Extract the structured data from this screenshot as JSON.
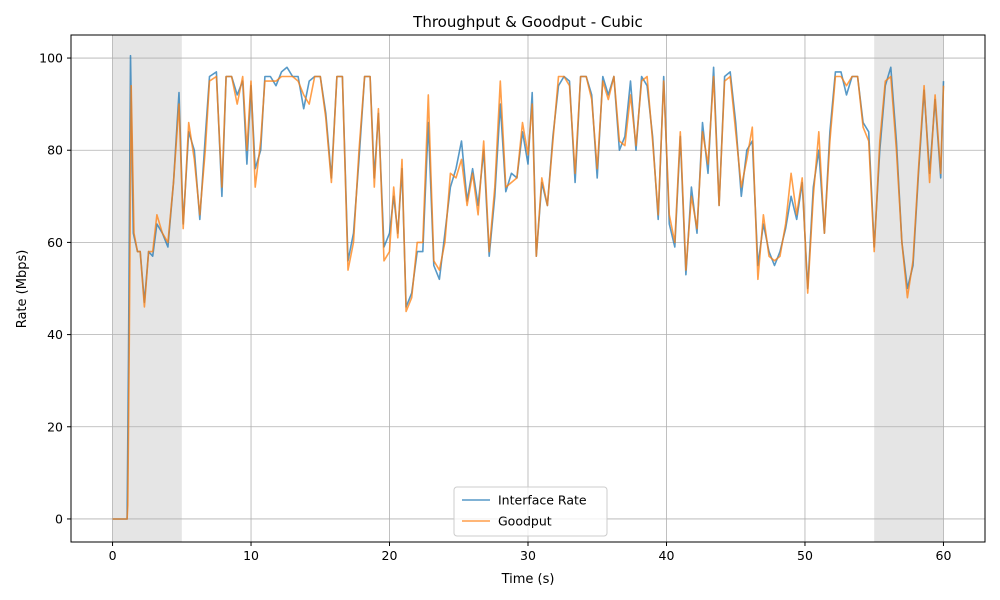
{
  "chart_data": {
    "type": "line",
    "title": "Throughput & Goodput - Cubic",
    "xlabel": "Time (s)",
    "ylabel": "Rate (Mbps)",
    "xlim": [
      -3,
      63
    ],
    "ylim": [
      -5,
      105
    ],
    "xticks": [
      0,
      10,
      20,
      30,
      40,
      50,
      60
    ],
    "yticks": [
      0,
      20,
      40,
      60,
      80,
      100
    ],
    "grid": true,
    "legend_position": "bottom-center",
    "shaded_regions": [
      {
        "x_start": 0,
        "x_end": 5,
        "color": "#e5e5e5"
      },
      {
        "x_start": 55,
        "x_end": 60,
        "color": "#e5e5e5"
      }
    ],
    "series": [
      {
        "name": "Interface Rate",
        "color": "#1f77b4",
        "points": [
          [
            0,
            0
          ],
          [
            1.05,
            0
          ],
          [
            1.15,
            35
          ],
          [
            1.3,
            100.5
          ],
          [
            1.5,
            62
          ],
          [
            1.8,
            58
          ],
          [
            2,
            58
          ],
          [
            2.3,
            47
          ],
          [
            2.6,
            58
          ],
          [
            2.9,
            57
          ],
          [
            3.2,
            64
          ],
          [
            3.6,
            62
          ],
          [
            4,
            59
          ],
          [
            4.4,
            73
          ],
          [
            4.8,
            92.5
          ],
          [
            5.1,
            64
          ],
          [
            5.5,
            84
          ],
          [
            5.9,
            80
          ],
          [
            6.3,
            65
          ],
          [
            6.7,
            83
          ],
          [
            7,
            96
          ],
          [
            7.5,
            97
          ],
          [
            7.9,
            70
          ],
          [
            8.2,
            96
          ],
          [
            8.6,
            96
          ],
          [
            9,
            92
          ],
          [
            9.4,
            95
          ],
          [
            9.7,
            77
          ],
          [
            10,
            94
          ],
          [
            10.3,
            76
          ],
          [
            10.7,
            80
          ],
          [
            11,
            96
          ],
          [
            11.4,
            96
          ],
          [
            11.8,
            94
          ],
          [
            12.2,
            97
          ],
          [
            12.6,
            98
          ],
          [
            13,
            96
          ],
          [
            13.4,
            96
          ],
          [
            13.8,
            89
          ],
          [
            14.2,
            95
          ],
          [
            14.6,
            96
          ],
          [
            15,
            96
          ],
          [
            15.4,
            88
          ],
          [
            15.8,
            74
          ],
          [
            16.2,
            96
          ],
          [
            16.6,
            96
          ],
          [
            17,
            56
          ],
          [
            17.4,
            62
          ],
          [
            17.8,
            78
          ],
          [
            18.2,
            96
          ],
          [
            18.6,
            96
          ],
          [
            18.9,
            74
          ],
          [
            19.2,
            88
          ],
          [
            19.6,
            59
          ],
          [
            20,
            62
          ],
          [
            20.3,
            70
          ],
          [
            20.6,
            62
          ],
          [
            20.9,
            76
          ],
          [
            21.2,
            46
          ],
          [
            21.6,
            49
          ],
          [
            22,
            58
          ],
          [
            22.4,
            58
          ],
          [
            22.8,
            86
          ],
          [
            23.2,
            55
          ],
          [
            23.6,
            52
          ],
          [
            24,
            62
          ],
          [
            24.4,
            72
          ],
          [
            24.8,
            76
          ],
          [
            25.2,
            82
          ],
          [
            25.6,
            69
          ],
          [
            26,
            76
          ],
          [
            26.4,
            68
          ],
          [
            26.8,
            80
          ],
          [
            27.2,
            57
          ],
          [
            27.6,
            70
          ],
          [
            28,
            90
          ],
          [
            28.4,
            71
          ],
          [
            28.8,
            75
          ],
          [
            29.2,
            74
          ],
          [
            29.6,
            84
          ],
          [
            30,
            77
          ],
          [
            30.3,
            92.5
          ],
          [
            30.6,
            57
          ],
          [
            31,
            73
          ],
          [
            31.4,
            68
          ],
          [
            31.8,
            83
          ],
          [
            32.2,
            94
          ],
          [
            32.6,
            96
          ],
          [
            33,
            95
          ],
          [
            33.4,
            73
          ],
          [
            33.8,
            96
          ],
          [
            34.2,
            96
          ],
          [
            34.6,
            92
          ],
          [
            35,
            74
          ],
          [
            35.4,
            96
          ],
          [
            35.8,
            92
          ],
          [
            36.2,
            96
          ],
          [
            36.6,
            80
          ],
          [
            37,
            83
          ],
          [
            37.4,
            95
          ],
          [
            37.8,
            80
          ],
          [
            38.2,
            96
          ],
          [
            38.6,
            94
          ],
          [
            39,
            83
          ],
          [
            39.4,
            65
          ],
          [
            39.8,
            96
          ],
          [
            40.2,
            64
          ],
          [
            40.6,
            59
          ],
          [
            41,
            83
          ],
          [
            41.4,
            53
          ],
          [
            41.8,
            72
          ],
          [
            42.2,
            62
          ],
          [
            42.6,
            86
          ],
          [
            43,
            75
          ],
          [
            43.4,
            98
          ],
          [
            43.8,
            68
          ],
          [
            44.2,
            96
          ],
          [
            44.6,
            97
          ],
          [
            45,
            86
          ],
          [
            45.4,
            70
          ],
          [
            45.8,
            80
          ],
          [
            46.2,
            82
          ],
          [
            46.6,
            55
          ],
          [
            47,
            64
          ],
          [
            47.4,
            58
          ],
          [
            47.8,
            55
          ],
          [
            48.2,
            58
          ],
          [
            48.6,
            63
          ],
          [
            49,
            70
          ],
          [
            49.4,
            65
          ],
          [
            49.8,
            73
          ],
          [
            50.2,
            50
          ],
          [
            50.6,
            72
          ],
          [
            51,
            80
          ],
          [
            51.4,
            62
          ],
          [
            51.8,
            84
          ],
          [
            52.2,
            97
          ],
          [
            52.6,
            97
          ],
          [
            53,
            92
          ],
          [
            53.4,
            96
          ],
          [
            53.8,
            96
          ],
          [
            54.2,
            86
          ],
          [
            54.6,
            84
          ],
          [
            55,
            59
          ],
          [
            55.4,
            80
          ],
          [
            55.8,
            94
          ],
          [
            56.2,
            98
          ],
          [
            56.6,
            82
          ],
          [
            57,
            60
          ],
          [
            57.4,
            50
          ],
          [
            57.8,
            55
          ],
          [
            58.2,
            75
          ],
          [
            58.6,
            93
          ],
          [
            59,
            75
          ],
          [
            59.4,
            91
          ],
          [
            59.8,
            74
          ],
          [
            60,
            95
          ]
        ]
      },
      {
        "name": "Goodput",
        "color": "#ff7f0e",
        "points": [
          [
            0,
            0
          ],
          [
            1.05,
            0
          ],
          [
            1.1,
            3
          ],
          [
            1.2,
            36
          ],
          [
            1.35,
            94
          ],
          [
            1.55,
            62
          ],
          [
            1.8,
            58
          ],
          [
            2,
            58
          ],
          [
            2.3,
            46
          ],
          [
            2.6,
            58
          ],
          [
            2.9,
            58
          ],
          [
            3.2,
            66
          ],
          [
            3.6,
            62
          ],
          [
            4,
            60
          ],
          [
            4.4,
            73
          ],
          [
            4.8,
            90
          ],
          [
            5.1,
            63
          ],
          [
            5.5,
            86
          ],
          [
            5.9,
            78
          ],
          [
            6.3,
            66
          ],
          [
            6.7,
            80
          ],
          [
            7,
            95
          ],
          [
            7.5,
            96
          ],
          [
            7.9,
            72
          ],
          [
            8.2,
            96
          ],
          [
            8.6,
            96
          ],
          [
            9,
            90
          ],
          [
            9.4,
            96
          ],
          [
            9.7,
            80
          ],
          [
            10,
            95
          ],
          [
            10.3,
            72
          ],
          [
            10.7,
            82
          ],
          [
            11,
            95
          ],
          [
            11.4,
            95
          ],
          [
            11.8,
            95
          ],
          [
            12.2,
            96
          ],
          [
            12.6,
            96
          ],
          [
            13,
            96
          ],
          [
            13.4,
            95
          ],
          [
            13.8,
            92
          ],
          [
            14.2,
            90
          ],
          [
            14.6,
            96
          ],
          [
            15,
            96
          ],
          [
            15.4,
            87
          ],
          [
            15.8,
            73
          ],
          [
            16.2,
            96
          ],
          [
            16.6,
            96
          ],
          [
            17,
            54
          ],
          [
            17.4,
            60
          ],
          [
            17.8,
            80
          ],
          [
            18.2,
            96
          ],
          [
            18.6,
            96
          ],
          [
            18.9,
            72
          ],
          [
            19.2,
            89
          ],
          [
            19.6,
            56
          ],
          [
            20,
            58
          ],
          [
            20.3,
            72
          ],
          [
            20.6,
            61
          ],
          [
            20.9,
            78
          ],
          [
            21.2,
            45
          ],
          [
            21.6,
            48
          ],
          [
            22,
            60
          ],
          [
            22.4,
            60
          ],
          [
            22.8,
            92
          ],
          [
            23.2,
            56
          ],
          [
            23.6,
            54
          ],
          [
            24,
            60
          ],
          [
            24.4,
            75
          ],
          [
            24.8,
            74
          ],
          [
            25.2,
            78
          ],
          [
            25.6,
            68
          ],
          [
            26,
            75
          ],
          [
            26.4,
            66
          ],
          [
            26.8,
            82
          ],
          [
            27.2,
            58
          ],
          [
            27.6,
            72
          ],
          [
            28,
            95
          ],
          [
            28.4,
            72
          ],
          [
            28.8,
            73
          ],
          [
            29.2,
            74
          ],
          [
            29.6,
            86
          ],
          [
            30,
            79
          ],
          [
            30.3,
            90
          ],
          [
            30.6,
            57
          ],
          [
            31,
            74
          ],
          [
            31.4,
            68
          ],
          [
            31.8,
            82
          ],
          [
            32.2,
            96
          ],
          [
            32.6,
            96
          ],
          [
            33,
            94
          ],
          [
            33.4,
            75
          ],
          [
            33.8,
            96
          ],
          [
            34.2,
            96
          ],
          [
            34.6,
            91
          ],
          [
            35,
            76
          ],
          [
            35.4,
            95
          ],
          [
            35.8,
            91
          ],
          [
            36.2,
            96
          ],
          [
            36.6,
            82
          ],
          [
            37,
            81
          ],
          [
            37.4,
            92
          ],
          [
            37.8,
            81
          ],
          [
            38.2,
            95
          ],
          [
            38.6,
            96
          ],
          [
            39,
            82
          ],
          [
            39.4,
            66
          ],
          [
            39.8,
            95
          ],
          [
            40.2,
            66
          ],
          [
            40.6,
            60
          ],
          [
            41,
            84
          ],
          [
            41.4,
            54
          ],
          [
            41.8,
            70
          ],
          [
            42.2,
            63
          ],
          [
            42.6,
            84
          ],
          [
            43,
            77
          ],
          [
            43.4,
            96
          ],
          [
            43.8,
            68
          ],
          [
            44.2,
            95
          ],
          [
            44.6,
            96
          ],
          [
            45,
            84
          ],
          [
            45.4,
            72
          ],
          [
            45.8,
            78
          ],
          [
            46.2,
            85
          ],
          [
            46.6,
            52
          ],
          [
            47,
            66
          ],
          [
            47.4,
            57
          ],
          [
            47.8,
            56
          ],
          [
            48.2,
            57
          ],
          [
            48.6,
            64
          ],
          [
            49,
            75
          ],
          [
            49.4,
            66
          ],
          [
            49.8,
            74
          ],
          [
            50.2,
            49
          ],
          [
            50.6,
            70
          ],
          [
            51,
            84
          ],
          [
            51.4,
            62
          ],
          [
            51.8,
            82
          ],
          [
            52.2,
            96
          ],
          [
            52.6,
            96
          ],
          [
            53,
            94
          ],
          [
            53.4,
            96
          ],
          [
            53.8,
            96
          ],
          [
            54.2,
            85
          ],
          [
            54.6,
            82
          ],
          [
            55,
            58
          ],
          [
            55.4,
            82
          ],
          [
            55.8,
            95
          ],
          [
            56.2,
            96
          ],
          [
            56.6,
            80
          ],
          [
            57,
            60
          ],
          [
            57.4,
            48
          ],
          [
            57.8,
            56
          ],
          [
            58.2,
            76
          ],
          [
            58.6,
            94
          ],
          [
            59,
            73
          ],
          [
            59.4,
            92
          ],
          [
            59.8,
            75
          ],
          [
            60,
            94
          ]
        ]
      }
    ]
  }
}
